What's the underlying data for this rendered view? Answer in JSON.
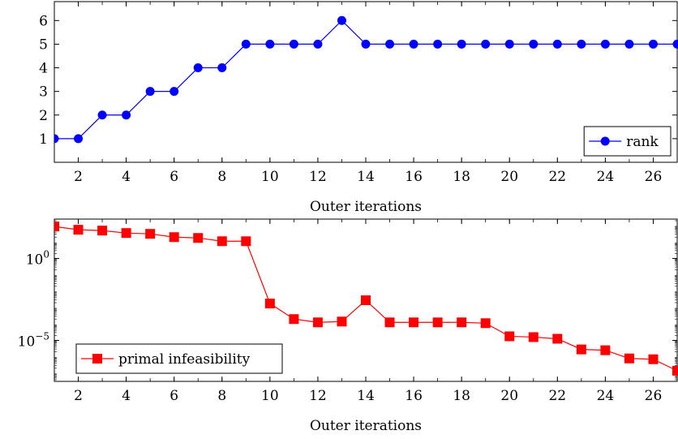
{
  "chart_data": [
    {
      "type": "line",
      "xlabel": "Outer iterations",
      "ylabel": "",
      "xlim": [
        1,
        27
      ],
      "ylim": [
        0,
        6.8
      ],
      "yscale": "linear",
      "x_ticks": [
        2,
        4,
        6,
        8,
        10,
        12,
        14,
        16,
        18,
        20,
        22,
        24,
        26
      ],
      "y_ticks": [
        1,
        2,
        3,
        4,
        5,
        6
      ],
      "x_minor_ticks_every": 1,
      "legend_position": "bottom-right",
      "series": [
        {
          "name": "rank",
          "color": "#0000ff",
          "marker": "circle",
          "x": [
            1,
            2,
            3,
            4,
            5,
            6,
            7,
            8,
            9,
            10,
            11,
            12,
            13,
            14,
            15,
            16,
            17,
            18,
            19,
            20,
            21,
            22,
            23,
            24,
            25,
            26,
            27
          ],
          "values": [
            1,
            1,
            2,
            2,
            3,
            3,
            4,
            4,
            5,
            5,
            5,
            5,
            6,
            5,
            5,
            5,
            5,
            5,
            5,
            5,
            5,
            5,
            5,
            5,
            5,
            5,
            5
          ]
        }
      ]
    },
    {
      "type": "line",
      "xlabel": "Outer iterations",
      "ylabel": "",
      "xlim": [
        1,
        27
      ],
      "ylim_log10": [
        -7.5,
        2.4
      ],
      "yscale": "log",
      "x_ticks": [
        2,
        4,
        6,
        8,
        10,
        12,
        14,
        16,
        18,
        20,
        22,
        24,
        26
      ],
      "y_ticks": [
        {
          "base": "10",
          "exp": "0",
          "log10": 0
        },
        {
          "base": "10",
          "exp": "−5",
          "log10": -5
        }
      ],
      "x_minor_ticks_every": 1,
      "legend_position": "bottom-left",
      "series": [
        {
          "name": "primal infeasibility",
          "color": "#ff0000",
          "marker": "square",
          "x": [
            1,
            2,
            3,
            4,
            5,
            6,
            7,
            8,
            9,
            10,
            11,
            12,
            13,
            14,
            15,
            16,
            17,
            18,
            19,
            20,
            21,
            22,
            23,
            24,
            25,
            26,
            27
          ],
          "log10_values": [
            1.95,
            1.75,
            1.7,
            1.55,
            1.5,
            1.3,
            1.25,
            1.05,
            1.05,
            -2.75,
            -3.7,
            -3.9,
            -3.85,
            -2.55,
            -3.9,
            -3.9,
            -3.9,
            -3.9,
            -3.95,
            -4.75,
            -4.8,
            -4.9,
            -5.55,
            -5.6,
            -6.1,
            -6.15,
            -6.85
          ]
        }
      ]
    }
  ]
}
